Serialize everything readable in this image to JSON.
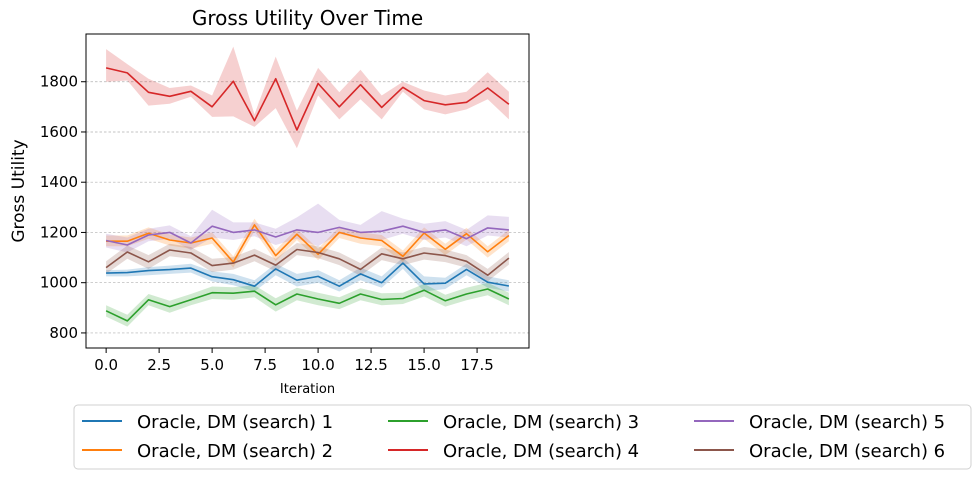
{
  "chart_data": {
    "type": "line",
    "title": "Gross Utility Over Time",
    "xlabel": "Iteration",
    "ylabel": "Gross Utility",
    "xlim": [
      -0.95,
      19.95
    ],
    "ylim": [
      740,
      1990
    ],
    "xticks": [
      0.0,
      2.5,
      5.0,
      7.5,
      10.0,
      12.5,
      15.0,
      17.5
    ],
    "xtick_labels": [
      "0.0",
      "2.5",
      "5.0",
      "7.5",
      "10.0",
      "12.5",
      "15.0",
      "17.5"
    ],
    "yticks": [
      800,
      1000,
      1200,
      1400,
      1600,
      1800
    ],
    "ytick_labels": [
      "800",
      "1000",
      "1200",
      "1400",
      "1600",
      "1800"
    ],
    "grid": "horizontal dashed",
    "legend_placement": "below plot, 3 columns",
    "x": [
      0,
      1,
      2,
      3,
      4,
      5,
      6,
      7,
      8,
      9,
      10,
      11,
      12,
      13,
      14,
      15,
      16,
      17,
      18,
      19
    ],
    "series": [
      {
        "name": "Oracle, DM (search) 1",
        "color": "#1f77b4",
        "values": [
          1038,
          1040,
          1048,
          1052,
          1058,
          1024,
          1012,
          986,
          1055,
          1010,
          1025,
          986,
          1035,
          1000,
          1078,
          995,
          998,
          1053,
          1002,
          987
        ],
        "lower": [
          1025,
          1025,
          1030,
          1035,
          1040,
          1005,
          990,
          965,
          1030,
          985,
          1000,
          965,
          1010,
          980,
          1055,
          965,
          975,
          1030,
          980,
          965
        ],
        "upper": [
          1050,
          1052,
          1062,
          1068,
          1075,
          1045,
          1035,
          1010,
          1075,
          1035,
          1050,
          1010,
          1060,
          1025,
          1100,
          1025,
          1020,
          1075,
          1025,
          1010
        ]
      },
      {
        "name": "Oracle, DM (search) 2",
        "color": "#ff7f0e",
        "values": [
          1165,
          1165,
          1197,
          1170,
          1158,
          1178,
          1082,
          1230,
          1108,
          1193,
          1113,
          1200,
          1178,
          1168,
          1105,
          1198,
          1133,
          1195,
          1123,
          1188
        ],
        "lower": [
          1145,
          1145,
          1175,
          1148,
          1135,
          1155,
          1060,
          1205,
          1085,
          1170,
          1090,
          1178,
          1155,
          1145,
          1082,
          1175,
          1110,
          1172,
          1100,
          1165
        ],
        "upper": [
          1188,
          1188,
          1220,
          1192,
          1180,
          1200,
          1105,
          1255,
          1130,
          1215,
          1135,
          1222,
          1200,
          1190,
          1128,
          1220,
          1155,
          1218,
          1145,
          1210
        ]
      },
      {
        "name": "Oracle, DM (search) 3",
        "color": "#2ca02c",
        "values": [
          888,
          848,
          932,
          905,
          932,
          960,
          958,
          966,
          912,
          955,
          935,
          918,
          955,
          933,
          937,
          970,
          928,
          955,
          975,
          935
        ],
        "lower": [
          865,
          825,
          910,
          880,
          910,
          935,
          932,
          942,
          885,
          930,
          910,
          895,
          930,
          910,
          915,
          945,
          905,
          930,
          950,
          910
        ],
        "upper": [
          910,
          872,
          955,
          928,
          955,
          985,
          982,
          990,
          938,
          980,
          960,
          942,
          978,
          958,
          960,
          995,
          952,
          980,
          1000,
          960
        ]
      },
      {
        "name": "Oracle, DM (search) 4",
        "color": "#d62728",
        "values": [
          1855,
          1835,
          1758,
          1742,
          1762,
          1700,
          1802,
          1645,
          1812,
          1608,
          1793,
          1700,
          1788,
          1698,
          1778,
          1725,
          1708,
          1718,
          1775,
          1710
        ],
        "lower": [
          1800,
          1805,
          1705,
          1712,
          1740,
          1660,
          1662,
          1620,
          1695,
          1535,
          1745,
          1650,
          1730,
          1650,
          1760,
          1690,
          1670,
          1690,
          1730,
          1650
        ],
        "upper": [
          1930,
          1870,
          1812,
          1775,
          1785,
          1745,
          1940,
          1670,
          1900,
          1685,
          1855,
          1758,
          1848,
          1745,
          1800,
          1765,
          1745,
          1760,
          1838,
          1760
        ]
      },
      {
        "name": "Oracle, DM (search) 5",
        "color": "#9467bd",
        "values": [
          1168,
          1150,
          1190,
          1200,
          1158,
          1225,
          1200,
          1210,
          1182,
          1210,
          1200,
          1220,
          1200,
          1205,
          1225,
          1200,
          1210,
          1175,
          1218,
          1210
        ],
        "lower": [
          1140,
          1120,
          1165,
          1175,
          1130,
          1180,
          1170,
          1185,
          1150,
          1175,
          1145,
          1195,
          1175,
          1170,
          1195,
          1170,
          1180,
          1145,
          1188,
          1180
        ],
        "upper": [
          1195,
          1180,
          1215,
          1228,
          1185,
          1290,
          1240,
          1240,
          1215,
          1260,
          1315,
          1250,
          1230,
          1285,
          1255,
          1235,
          1245,
          1210,
          1268,
          1262
        ]
      },
      {
        "name": "Oracle, DM (search) 6",
        "color": "#8c564b",
        "values": [
          1060,
          1122,
          1083,
          1130,
          1118,
          1068,
          1078,
          1110,
          1070,
          1132,
          1120,
          1095,
          1053,
          1115,
          1095,
          1118,
          1108,
          1085,
          1030,
          1098
        ],
        "lower": [
          1035,
          1095,
          1055,
          1105,
          1095,
          1042,
          1052,
          1085,
          1045,
          1110,
          1098,
          1070,
          1028,
          1090,
          1070,
          1092,
          1082,
          1060,
          1005,
          1072
        ],
        "upper": [
          1085,
          1148,
          1110,
          1155,
          1142,
          1095,
          1102,
          1135,
          1095,
          1158,
          1145,
          1120,
          1078,
          1140,
          1120,
          1142,
          1132,
          1110,
          1055,
          1122
        ]
      }
    ]
  }
}
